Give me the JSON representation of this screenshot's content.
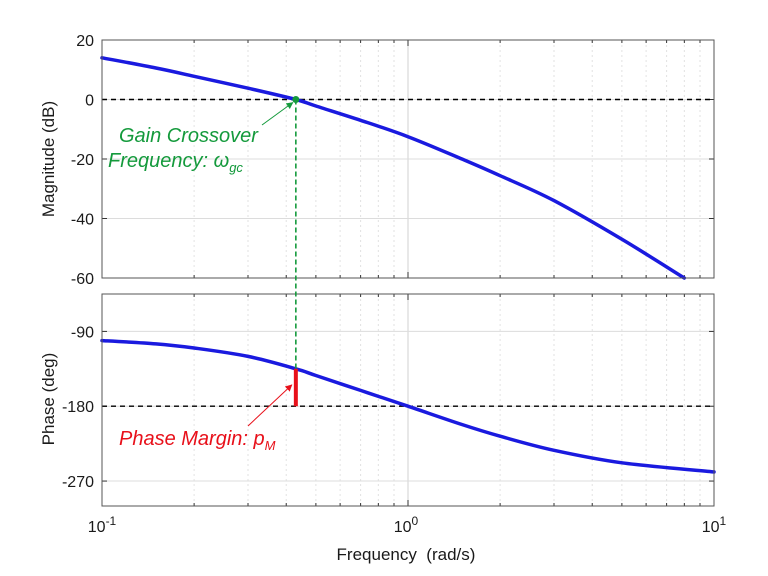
{
  "chart_data": [
    {
      "type": "line",
      "title": "",
      "xlabel": "",
      "ylabel": "Magnitude (dB)",
      "xscale": "log",
      "xlim": [
        0.1,
        10
      ],
      "ylim": [
        -60,
        20
      ],
      "yticks": [
        20,
        0,
        -20,
        -40,
        -60
      ],
      "grid": "on",
      "reference_line": {
        "y": 0,
        "style": "dashed",
        "color": "#000000"
      },
      "series": [
        {
          "color": "#1a1adf",
          "x": [
            0.1,
            0.15,
            0.2,
            0.3,
            0.43,
            0.5,
            0.7,
            1.0,
            1.5,
            2.0,
            3.0,
            5.0,
            8.0
          ],
          "y": [
            14,
            10.6,
            7.8,
            3.8,
            0,
            -2.2,
            -7,
            -12.5,
            -20,
            -25.6,
            -34,
            -47,
            -60
          ]
        }
      ],
      "annotation": {
        "line1": "Gain Crossover",
        "line2": "Frequency: ω",
        "subscript": "gc",
        "color": "#149a3c",
        "marker_x": 0.43,
        "marker_y": 0
      }
    },
    {
      "type": "line",
      "title": "",
      "xlabel": "Frequency  (rad/s)",
      "ylabel": "Phase (deg)",
      "xscale": "log",
      "xlim": [
        0.1,
        10
      ],
      "ylim": [
        -300,
        -45
      ],
      "yticks": [
        -90,
        -180,
        -270
      ],
      "xtick_labels": [
        {
          "base": "10",
          "exp": "-1",
          "value": 0.1
        },
        {
          "base": "10",
          "exp": "0",
          "value": 1
        },
        {
          "base": "10",
          "exp": "1",
          "value": 10
        }
      ],
      "grid": "on",
      "reference_line": {
        "y": -180,
        "style": "dashed",
        "color": "#000000"
      },
      "series": [
        {
          "color": "#1a1adf",
          "x": [
            0.1,
            0.15,
            0.2,
            0.3,
            0.43,
            0.5,
            0.7,
            1.0,
            1.5,
            2.0,
            3.0,
            5.0,
            10.0
          ],
          "y": [
            -101,
            -105,
            -110,
            -120,
            -135,
            -143,
            -161,
            -180,
            -202,
            -216,
            -233,
            -248,
            -259
          ]
        }
      ],
      "annotation": {
        "text": "Phase Margin: p",
        "subscript": "M",
        "color": "#e8101a",
        "margin_x": 0.43,
        "margin_from": -180,
        "margin_to": -135
      }
    }
  ]
}
